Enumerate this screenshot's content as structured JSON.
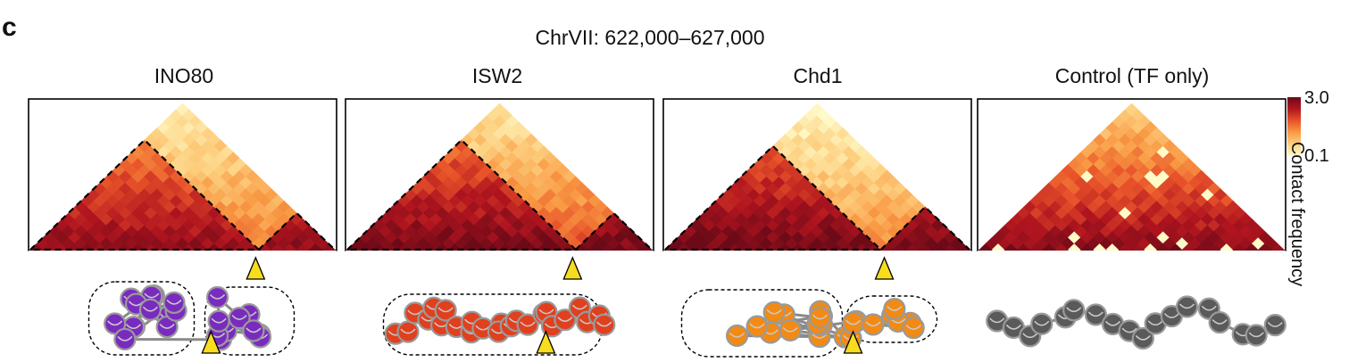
{
  "panel_letter": "c",
  "region_title": "ChrVII: 622,000–627,000",
  "panels": [
    {
      "label": "INO80",
      "tint": "warm",
      "domain_boundary": 0.74,
      "arrow_position": 0.74,
      "model_color": "#7a2bbf",
      "model_style": "two-clusters"
    },
    {
      "label": "ISW2",
      "tint": "red",
      "domain_boundary": 0.74,
      "arrow_position": 0.74,
      "model_color": "#e0401e",
      "model_style": "chain-clusters"
    },
    {
      "label": "Chd1",
      "tint": "redpale",
      "domain_boundary": 0.72,
      "arrow_position": 0.72,
      "model_color": "#f28a14",
      "model_style": "two-clusters-flat"
    },
    {
      "label": "Control (TF only)",
      "tint": "control",
      "domain_boundary": null,
      "arrow_position": null,
      "model_color": "#5a5a5a",
      "model_style": "open"
    }
  ],
  "colorbar": {
    "max_label": "3.0",
    "min_label": "0.1",
    "title": "Contact frequency",
    "colors": [
      "#fffbc9",
      "#fdd181",
      "#f99a44",
      "#e8532a",
      "#b1151f",
      "#6d0a18"
    ]
  },
  "arrow_color": "#f7dd1e"
}
